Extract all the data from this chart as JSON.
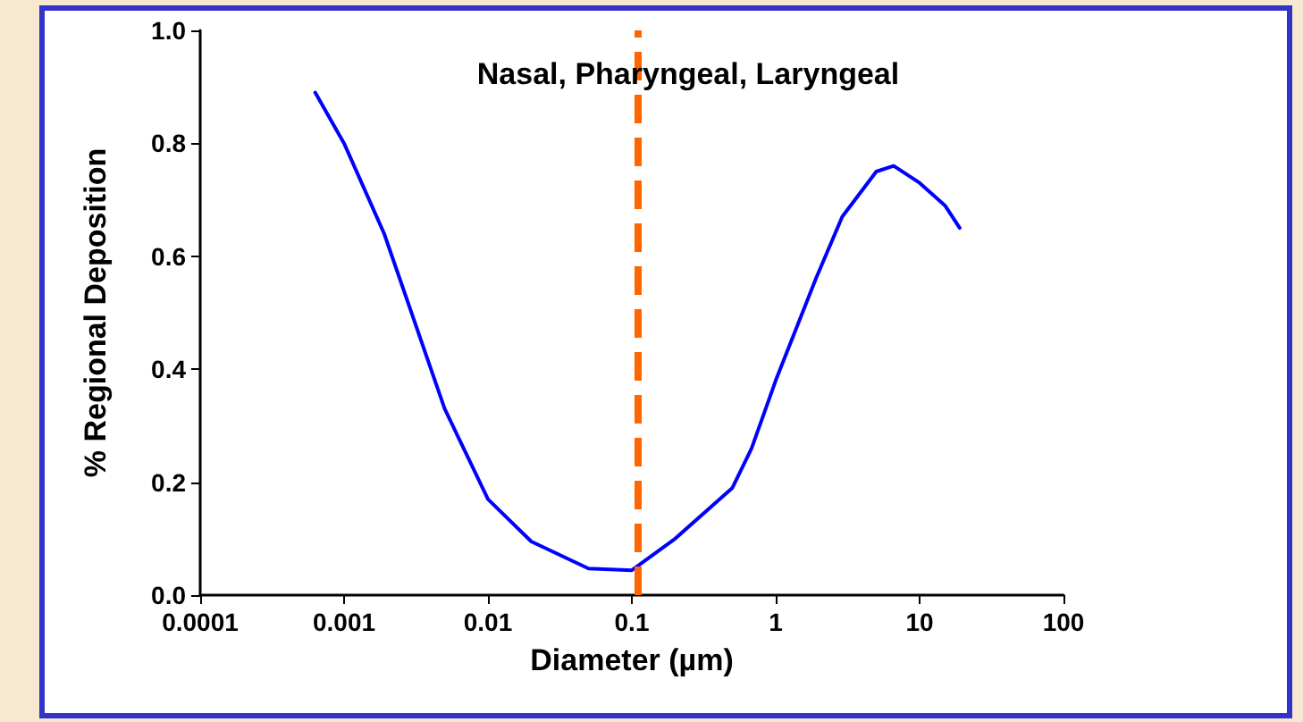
{
  "chart_data": {
    "type": "line",
    "title": "Nasal, Pharyngeal, Laryngeal",
    "xlabel": "Diameter (µm)",
    "ylabel": "% Regional Deposition",
    "x": [
      0.00063,
      0.001,
      0.0019,
      0.005,
      0.01,
      0.02,
      0.05,
      0.1,
      0.2,
      0.5,
      0.68,
      1.0,
      1.9,
      2.9,
      5,
      6.6,
      10,
      15,
      19
    ],
    "series": [
      {
        "color": "#0000ff",
        "values": [
          0.89,
          0.8,
          0.64,
          0.33,
          0.17,
          0.095,
          0.047,
          0.044,
          0.1,
          0.19,
          0.26,
          0.38,
          0.56,
          0.67,
          0.75,
          0.76,
          0.73,
          0.69,
          0.65
        ]
      }
    ],
    "log": "x",
    "xlim": [
      0.0001,
      100
    ],
    "xticks": [
      0.0001,
      0.001,
      0.01,
      0.1,
      1,
      10,
      100
    ],
    "ylim": [
      0,
      1
    ],
    "yticks": [
      {
        "value": 0,
        "label": "0.0"
      },
      0.2,
      0.4,
      0.6,
      0.8,
      {
        "value": 1,
        "label": "1.0"
      }
    ],
    "ref_lines": [
      {
        "axis": "x",
        "value": 0.11,
        "color": "#ff6600",
        "line_style": "dashed"
      }
    ],
    "grid": false,
    "marker": "none",
    "line_style": "solid"
  }
}
